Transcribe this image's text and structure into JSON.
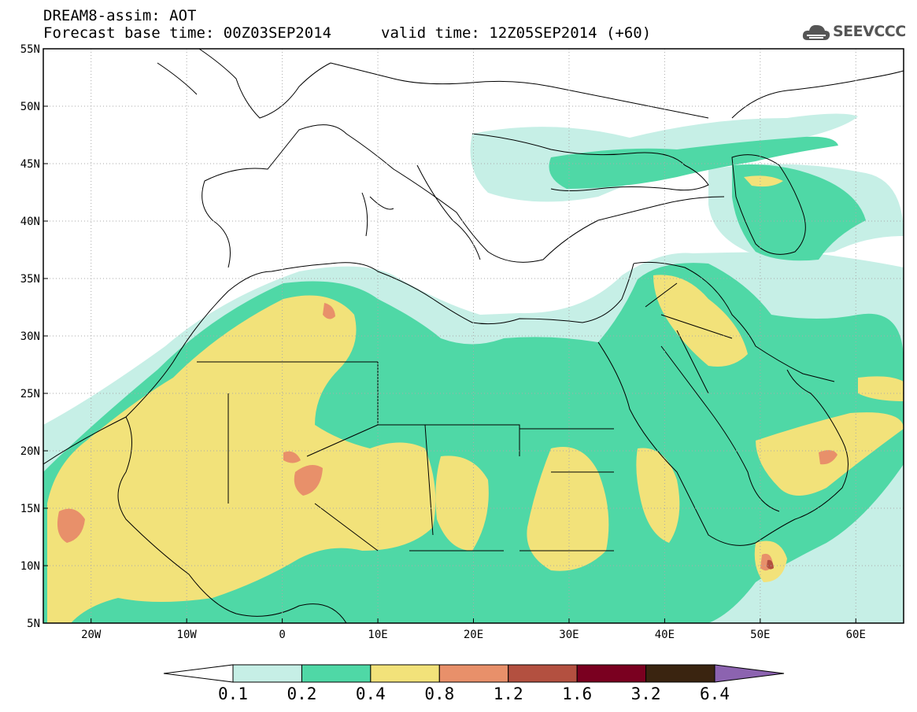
{
  "header": {
    "line1": "DREAM8-assim: AOT",
    "line2": "Forecast base time: 00Z03SEP2014",
    "line3": "valid time: 12Z05SEP2014 (+60)"
  },
  "logo": {
    "text": "SEEVCCC",
    "icon": "cloud-icon"
  },
  "chart_data": {
    "type": "heatmap",
    "variable": "AOT",
    "lat_ticks": [
      "55N",
      "50N",
      "45N",
      "40N",
      "35N",
      "30N",
      "25N",
      "20N",
      "15N",
      "10N",
      "5N"
    ],
    "lon_ticks": [
      "20W",
      "10W",
      "0",
      "10E",
      "20E",
      "30E",
      "40E",
      "50E",
      "60E"
    ],
    "lat_range": [
      5,
      55
    ],
    "lon_range": [
      -25,
      65
    ],
    "grid": "dotted",
    "colorbar": {
      "labels": [
        "0.1",
        "0.2",
        "0.4",
        "0.8",
        "1.2",
        "1.6",
        "3.2",
        "6.4"
      ],
      "colors": [
        "#ffffff",
        "#c6efe6",
        "#4fd8a6",
        "#f2e27a",
        "#e8906a",
        "#b35040",
        "#7a0020",
        "#3a2410",
        "#8c63b0"
      ]
    }
  }
}
